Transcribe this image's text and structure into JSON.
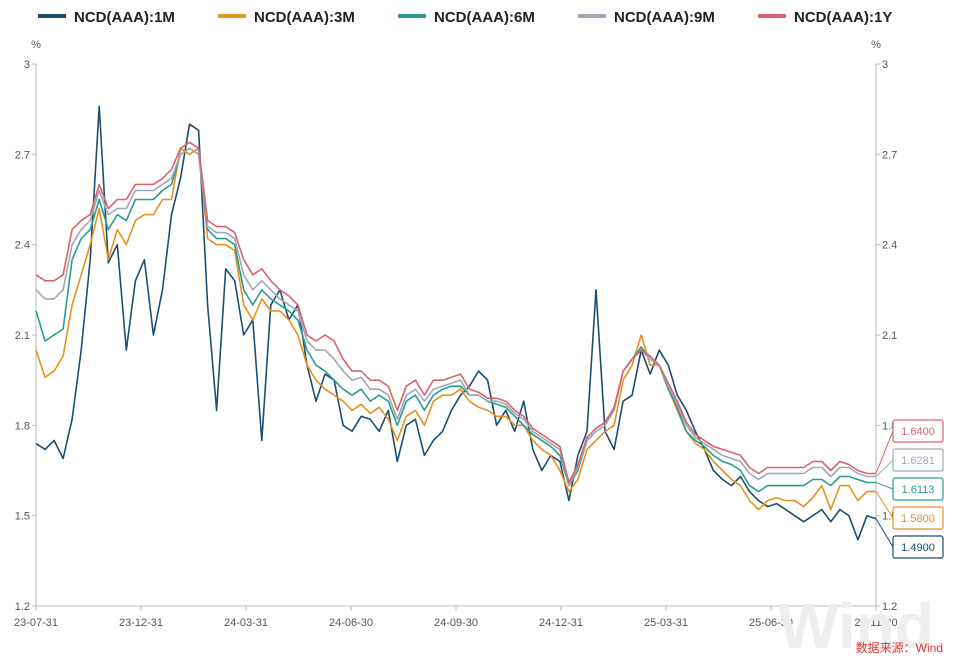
{
  "chart_data": {
    "type": "line",
    "x_labels": [
      "23-07-31",
      "23-12-31",
      "24-03-31",
      "24-06-30",
      "24-09-30",
      "24-12-31",
      "25-03-31",
      "25-06-30",
      "25-11-20"
    ],
    "y_unit": "%",
    "ylim": [
      1.2,
      3.0
    ],
    "y_ticks": [
      "1.2",
      "1.5",
      "1.8",
      "2.1",
      "2.4",
      "2.7",
      "3"
    ],
    "grid": false,
    "legend_position": "top",
    "source": "数据来源：Wind",
    "watermark": "Wind",
    "series": [
      {
        "name": "NCD(AAA):1M",
        "color": "#1b4f72",
        "end_label": "1.4900",
        "values": [
          1.74,
          1.72,
          1.75,
          1.69,
          1.82,
          2.05,
          2.35,
          2.86,
          2.34,
          2.4,
          2.05,
          2.28,
          2.35,
          2.1,
          2.25,
          2.5,
          2.62,
          2.8,
          2.78,
          2.2,
          1.85,
          2.32,
          2.28,
          2.1,
          2.15,
          1.75,
          2.2,
          2.25,
          2.15,
          2.2,
          2.0,
          1.88,
          1.97,
          1.95,
          1.8,
          1.78,
          1.83,
          1.82,
          1.78,
          1.85,
          1.68,
          1.8,
          1.82,
          1.7,
          1.75,
          1.78,
          1.85,
          1.9,
          1.93,
          1.98,
          1.95,
          1.8,
          1.85,
          1.78,
          1.88,
          1.72,
          1.65,
          1.7,
          1.68,
          1.55,
          1.7,
          1.78,
          2.25,
          1.78,
          1.72,
          1.88,
          1.9,
          2.05,
          1.97,
          2.05,
          2.0,
          1.9,
          1.85,
          1.78,
          1.72,
          1.65,
          1.62,
          1.6,
          1.63,
          1.58,
          1.55,
          1.53,
          1.54,
          1.52,
          1.5,
          1.48,
          1.5,
          1.52,
          1.48,
          1.52,
          1.5,
          1.42,
          1.5,
          1.49
        ]
      },
      {
        "name": "NCD(AAA):3M",
        "color": "#e8901e",
        "end_label": "1.5800",
        "values": [
          2.05,
          1.96,
          1.98,
          2.03,
          2.2,
          2.3,
          2.4,
          2.52,
          2.35,
          2.45,
          2.4,
          2.48,
          2.5,
          2.5,
          2.55,
          2.55,
          2.72,
          2.7,
          2.72,
          2.42,
          2.4,
          2.4,
          2.38,
          2.2,
          2.15,
          2.22,
          2.18,
          2.18,
          2.15,
          2.1,
          2.0,
          1.95,
          1.92,
          1.9,
          1.88,
          1.85,
          1.87,
          1.84,
          1.86,
          1.82,
          1.75,
          1.83,
          1.85,
          1.8,
          1.88,
          1.9,
          1.9,
          1.92,
          1.88,
          1.86,
          1.85,
          1.83,
          1.83,
          1.8,
          1.8,
          1.75,
          1.72,
          1.7,
          1.65,
          1.58,
          1.62,
          1.72,
          1.75,
          1.78,
          1.8,
          1.95,
          2.0,
          2.1,
          2.0,
          2.0,
          1.92,
          1.85,
          1.78,
          1.74,
          1.72,
          1.68,
          1.65,
          1.62,
          1.6,
          1.55,
          1.52,
          1.55,
          1.56,
          1.55,
          1.55,
          1.53,
          1.56,
          1.6,
          1.52,
          1.6,
          1.6,
          1.55,
          1.58,
          1.58
        ]
      },
      {
        "name": "NCD(AAA):6M",
        "color": "#2a9d8f",
        "end_label": "1.6113",
        "values": [
          2.18,
          2.08,
          2.1,
          2.12,
          2.35,
          2.42,
          2.45,
          2.55,
          2.45,
          2.5,
          2.48,
          2.55,
          2.55,
          2.55,
          2.58,
          2.6,
          2.7,
          2.72,
          2.7,
          2.45,
          2.42,
          2.42,
          2.4,
          2.25,
          2.2,
          2.25,
          2.22,
          2.2,
          2.18,
          2.15,
          2.05,
          2.0,
          1.98,
          1.95,
          1.92,
          1.9,
          1.92,
          1.88,
          1.9,
          1.88,
          1.8,
          1.88,
          1.9,
          1.85,
          1.9,
          1.92,
          1.93,
          1.93,
          1.9,
          1.9,
          1.88,
          1.87,
          1.86,
          1.83,
          1.8,
          1.77,
          1.75,
          1.73,
          1.7,
          1.6,
          1.65,
          1.75,
          1.78,
          1.8,
          1.85,
          1.98,
          2.02,
          2.06,
          2.02,
          2.0,
          1.92,
          1.86,
          1.78,
          1.75,
          1.73,
          1.7,
          1.68,
          1.67,
          1.65,
          1.6,
          1.58,
          1.6,
          1.6,
          1.6,
          1.6,
          1.6,
          1.62,
          1.62,
          1.6,
          1.63,
          1.63,
          1.62,
          1.61,
          1.61
        ]
      },
      {
        "name": "NCD(AAA):9M",
        "color": "#9fa8b8",
        "end_label": "1.6281",
        "values": [
          2.25,
          2.22,
          2.22,
          2.25,
          2.4,
          2.45,
          2.48,
          2.58,
          2.5,
          2.52,
          2.52,
          2.58,
          2.58,
          2.58,
          2.6,
          2.62,
          2.7,
          2.72,
          2.7,
          2.46,
          2.44,
          2.44,
          2.42,
          2.3,
          2.25,
          2.28,
          2.25,
          2.22,
          2.2,
          2.18,
          2.08,
          2.05,
          2.05,
          2.02,
          1.98,
          1.95,
          1.96,
          1.92,
          1.92,
          1.9,
          1.82,
          1.9,
          1.92,
          1.88,
          1.92,
          1.93,
          1.94,
          1.95,
          1.9,
          1.9,
          1.88,
          1.88,
          1.87,
          1.84,
          1.82,
          1.78,
          1.76,
          1.74,
          1.72,
          1.6,
          1.66,
          1.75,
          1.78,
          1.8,
          1.85,
          1.98,
          2.02,
          2.05,
          2.02,
          2.0,
          1.93,
          1.87,
          1.8,
          1.76,
          1.74,
          1.72,
          1.7,
          1.69,
          1.68,
          1.64,
          1.62,
          1.64,
          1.64,
          1.64,
          1.64,
          1.64,
          1.66,
          1.66,
          1.63,
          1.66,
          1.66,
          1.64,
          1.63,
          1.63
        ]
      },
      {
        "name": "NCD(AAA):1Y",
        "color": "#d9646a",
        "end_label": "1.6400",
        "values": [
          2.3,
          2.28,
          2.28,
          2.3,
          2.45,
          2.48,
          2.5,
          2.6,
          2.52,
          2.55,
          2.55,
          2.6,
          2.6,
          2.6,
          2.62,
          2.65,
          2.72,
          2.74,
          2.72,
          2.48,
          2.46,
          2.46,
          2.44,
          2.35,
          2.3,
          2.32,
          2.28,
          2.25,
          2.23,
          2.2,
          2.1,
          2.08,
          2.1,
          2.08,
          2.02,
          1.98,
          1.98,
          1.95,
          1.95,
          1.93,
          1.85,
          1.93,
          1.95,
          1.9,
          1.95,
          1.95,
          1.96,
          1.97,
          1.92,
          1.91,
          1.89,
          1.89,
          1.88,
          1.85,
          1.83,
          1.79,
          1.77,
          1.75,
          1.73,
          1.61,
          1.67,
          1.76,
          1.79,
          1.81,
          1.86,
          1.98,
          2.02,
          2.05,
          2.03,
          2.0,
          1.94,
          1.88,
          1.81,
          1.77,
          1.75,
          1.73,
          1.72,
          1.71,
          1.7,
          1.66,
          1.64,
          1.66,
          1.66,
          1.66,
          1.66,
          1.66,
          1.68,
          1.68,
          1.65,
          1.68,
          1.67,
          1.65,
          1.64,
          1.64
        ]
      }
    ]
  }
}
